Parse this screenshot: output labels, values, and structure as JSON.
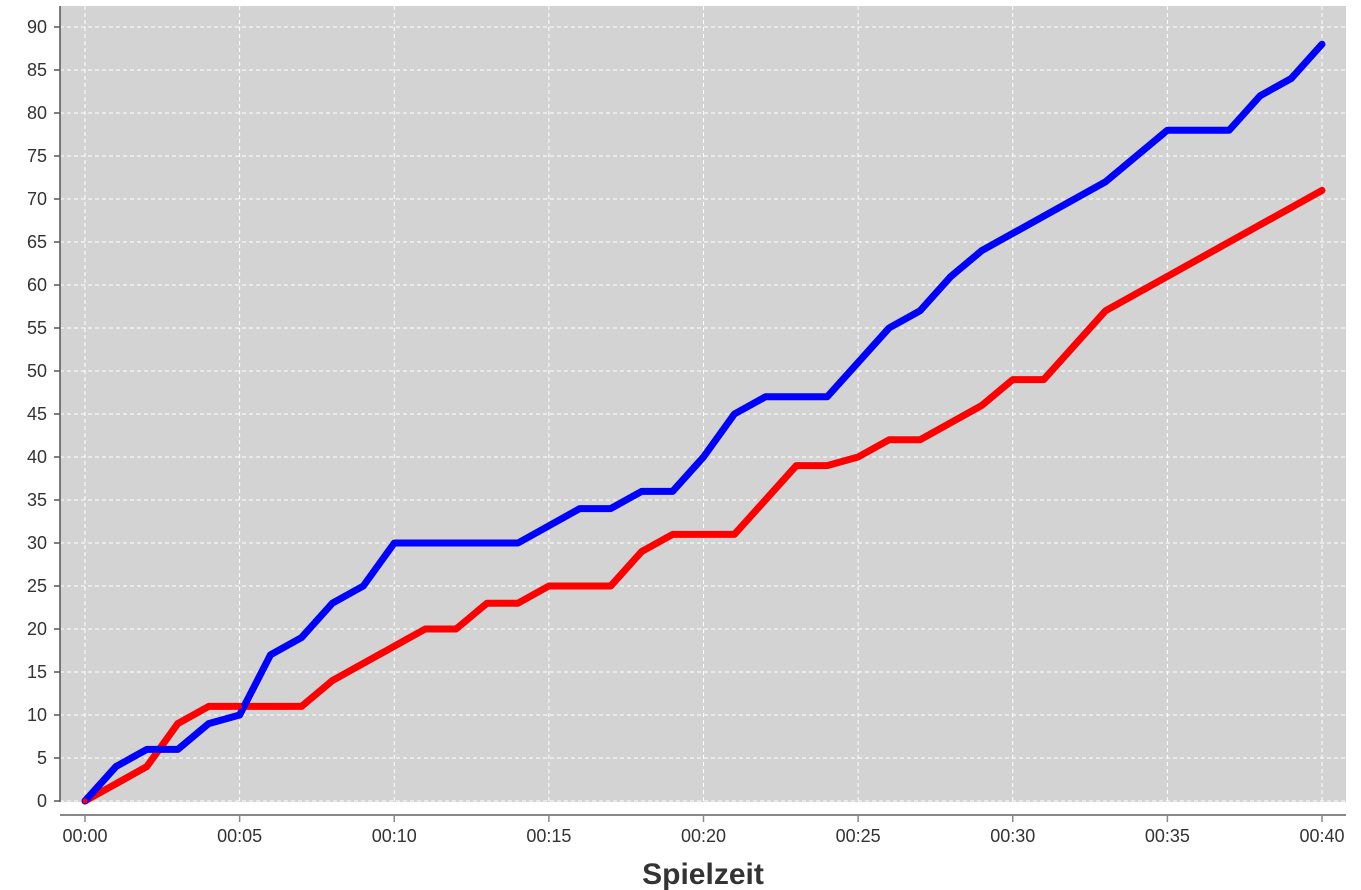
{
  "chart_data": {
    "type": "line",
    "xlabel": "Spielzeit",
    "ylabel": "",
    "x_unit": "minutes",
    "xlim": [
      0,
      40
    ],
    "ylim": [
      0,
      90
    ],
    "x_tick_values": [
      0,
      5,
      10,
      15,
      20,
      25,
      30,
      35,
      40
    ],
    "x_tick_labels": [
      "00:00",
      "00:05",
      "00:10",
      "00:15",
      "00:20",
      "00:25",
      "00:30",
      "00:35",
      "00:40"
    ],
    "y_ticks": [
      0,
      5,
      10,
      15,
      20,
      25,
      30,
      35,
      40,
      45,
      50,
      55,
      60,
      65,
      70,
      75,
      80,
      85,
      90
    ],
    "grid": true,
    "background": "#d3d3d3",
    "series": [
      {
        "color": "#0000ff",
        "points": [
          [
            0,
            0
          ],
          [
            1,
            4
          ],
          [
            2,
            6
          ],
          [
            3,
            6
          ],
          [
            4,
            9
          ],
          [
            5,
            10
          ],
          [
            6,
            17
          ],
          [
            7,
            19
          ],
          [
            8,
            23
          ],
          [
            9,
            25
          ],
          [
            10,
            30
          ],
          [
            11,
            30
          ],
          [
            12,
            30
          ],
          [
            13,
            30
          ],
          [
            14,
            30
          ],
          [
            16,
            34
          ],
          [
            17,
            34
          ],
          [
            18,
            36
          ],
          [
            19,
            36
          ],
          [
            20,
            40
          ],
          [
            21,
            45
          ],
          [
            22,
            47
          ],
          [
            23,
            47
          ],
          [
            24,
            47
          ],
          [
            26,
            55
          ],
          [
            27,
            57
          ],
          [
            28,
            61
          ],
          [
            29,
            64
          ],
          [
            33,
            72
          ],
          [
            35,
            78
          ],
          [
            37,
            78
          ],
          [
            38,
            82
          ],
          [
            39,
            84
          ],
          [
            40,
            88
          ]
        ]
      },
      {
        "color": "#ff0000",
        "points": [
          [
            0,
            0
          ],
          [
            1,
            2
          ],
          [
            2,
            4
          ],
          [
            3,
            9
          ],
          [
            4,
            11
          ],
          [
            5,
            11
          ],
          [
            6,
            11
          ],
          [
            7,
            11
          ],
          [
            8,
            14
          ],
          [
            11,
            20
          ],
          [
            12,
            20
          ],
          [
            13,
            23
          ],
          [
            14,
            23
          ],
          [
            15,
            25
          ],
          [
            16,
            25
          ],
          [
            17,
            25
          ],
          [
            18,
            29
          ],
          [
            19,
            31
          ],
          [
            20,
            31
          ],
          [
            21,
            31
          ],
          [
            23,
            39
          ],
          [
            24,
            39
          ],
          [
            25,
            40
          ],
          [
            26,
            42
          ],
          [
            27,
            42
          ],
          [
            29,
            46
          ],
          [
            30,
            49
          ],
          [
            31,
            49
          ],
          [
            33,
            57
          ],
          [
            40,
            71
          ]
        ]
      }
    ]
  }
}
